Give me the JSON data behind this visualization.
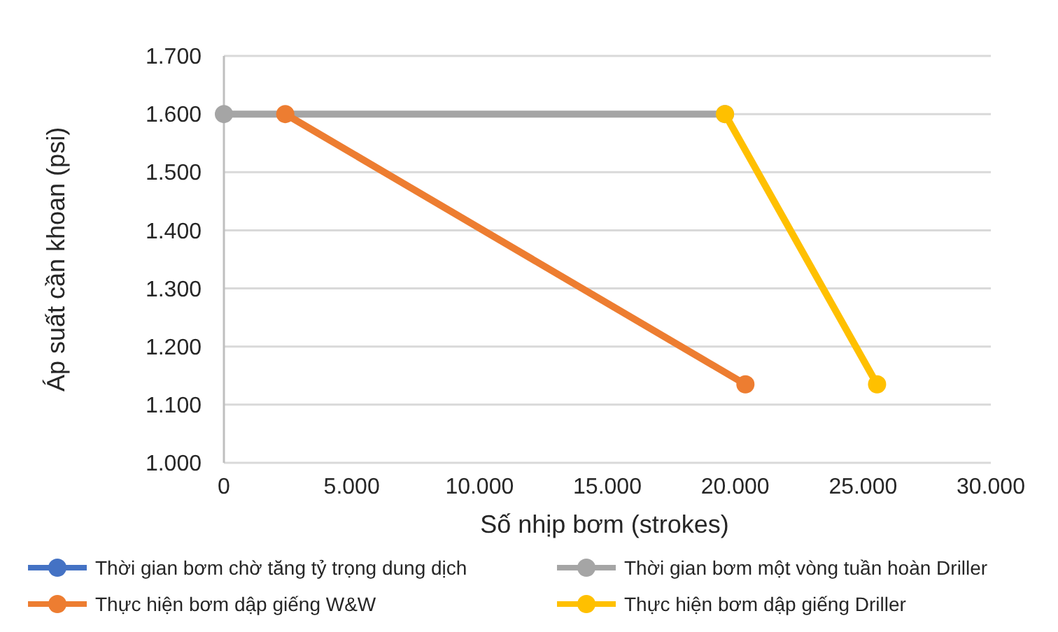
{
  "chart_data": {
    "type": "line",
    "xlabel": "Số nhịp bơm (strokes)",
    "ylabel": "Áp suất cần khoan (psi)",
    "xlim": [
      0,
      30000
    ],
    "xticks": [
      0,
      {
        "value": 5000,
        "label": "5.000"
      },
      {
        "value": 10000,
        "label": "10.000"
      },
      {
        "value": 15000,
        "label": "15.000"
      },
      {
        "value": 20000,
        "label": "20.000"
      },
      {
        "value": 25000,
        "label": "25.000"
      },
      {
        "value": 30000,
        "label": "30.000"
      }
    ],
    "ylim": [
      1000,
      1700
    ],
    "yticks": [
      {
        "value": 1000,
        "label": "1.000"
      },
      {
        "value": 1100,
        "label": "1.100"
      },
      {
        "value": 1200,
        "label": "1.200"
      },
      {
        "value": 1300,
        "label": "1.300"
      },
      {
        "value": 1400,
        "label": "1.400"
      },
      {
        "value": 1500,
        "label": "1.500"
      },
      {
        "value": 1600,
        "label": "1.600"
      },
      {
        "value": 1700,
        "label": "1.700"
      }
    ],
    "grid": "y",
    "legend": "bottom",
    "marker": "circle",
    "line_style": "solid",
    "series": [
      {
        "name": "Thời gian bơm chờ tăng tỷ trọng dung dịch",
        "color": "#4472c4"
      },
      {
        "name": "Thời gian bơm một vòng tuần hoàn Driller",
        "color": "#a5a5a5",
        "x": [
          0,
          19600
        ],
        "values": [
          1600,
          1600
        ]
      },
      {
        "name": "Thực hiện bơm dập giếng W&W",
        "color": "#ed7d31",
        "x": [
          2400,
          20400
        ],
        "values": [
          1600,
          1135
        ]
      },
      {
        "name": "Thực hiện bơm dập giếng Driller",
        "color": "#ffc000",
        "x": [
          19600,
          25550
        ],
        "values": [
          1600,
          1135
        ]
      }
    ]
  }
}
